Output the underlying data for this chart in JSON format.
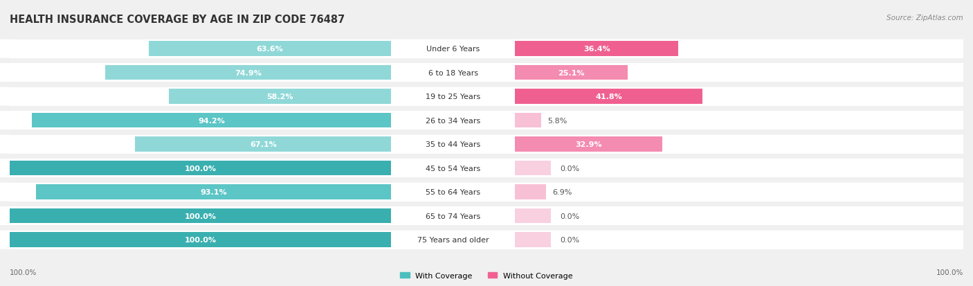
{
  "title": "HEALTH INSURANCE COVERAGE BY AGE IN ZIP CODE 76487",
  "source": "Source: ZipAtlas.com",
  "categories": [
    "Under 6 Years",
    "6 to 18 Years",
    "19 to 25 Years",
    "26 to 34 Years",
    "35 to 44 Years",
    "45 to 54 Years",
    "55 to 64 Years",
    "65 to 74 Years",
    "75 Years and older"
  ],
  "with_coverage": [
    63.6,
    74.9,
    58.2,
    94.2,
    67.1,
    100.0,
    93.1,
    100.0,
    100.0
  ],
  "without_coverage": [
    36.4,
    25.1,
    41.8,
    5.8,
    32.9,
    0.0,
    6.9,
    0.0,
    0.0
  ],
  "color_with": "#4DBEBE",
  "color_with_light": "#8DD8D8",
  "color_without": "#F06292",
  "color_without_light": "#F8BBD0",
  "background_color": "#f0f0f0",
  "bar_background": "#ffffff",
  "title_fontsize": 10.5,
  "label_fontsize": 8,
  "bar_height": 0.62,
  "figsize": [
    14.06,
    4.14
  ]
}
